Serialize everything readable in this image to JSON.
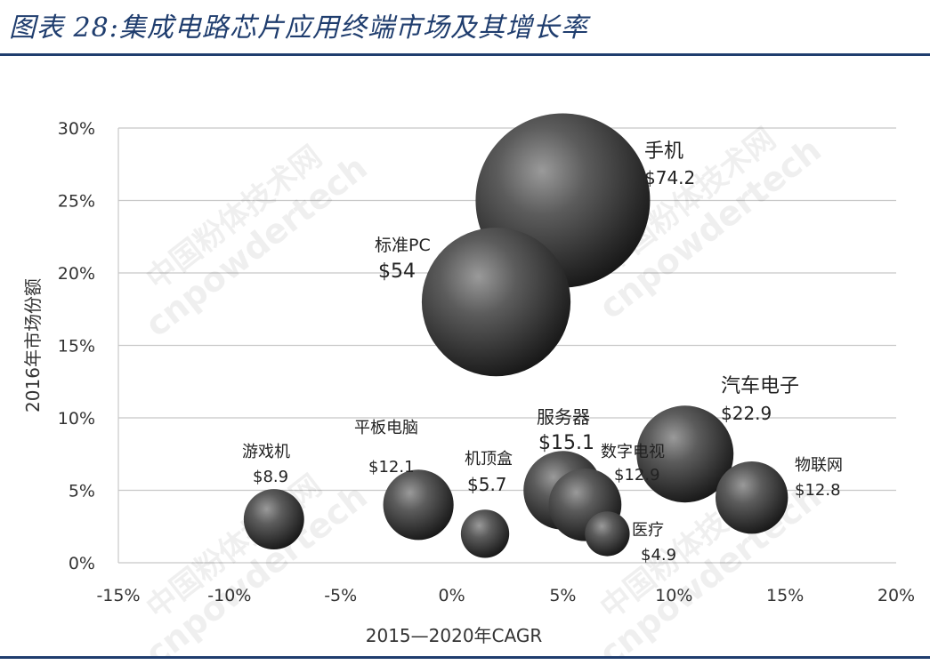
{
  "figure_title": "图表 28:集成电路芯片应用终端市场及其增长率",
  "watermark": {
    "line1": "中国粉体技术网",
    "line2": "cnpowdertech"
  },
  "chart_data": {
    "type": "bubble",
    "xlabel": "2015—2020年CAGR",
    "ylabel": "2016年市场份额",
    "xlim": [
      -15,
      20
    ],
    "ylim": [
      0,
      30
    ],
    "xticks": [
      -15,
      -10,
      -5,
      0,
      5,
      10,
      15,
      20
    ],
    "yticks": [
      0,
      5,
      10,
      15,
      20,
      25,
      30
    ],
    "xtick_labels": [
      "-15%",
      "-10%",
      "-5%",
      "0%",
      "5%",
      "10%",
      "15%",
      "20%"
    ],
    "ytick_labels": [
      "0%",
      "5%",
      "10%",
      "15%",
      "20%",
      "25%",
      "30%"
    ],
    "grid": "horizontal",
    "bubbles": [
      {
        "name": "手机",
        "value_label": "$74.2",
        "x": 5,
        "y": 25,
        "size": 74.2
      },
      {
        "name": "标准PC",
        "value_label": "$54",
        "x": 2,
        "y": 18,
        "size": 54
      },
      {
        "name": "汽车电子",
        "value_label": "$22.9",
        "x": 10.5,
        "y": 7.5,
        "size": 22.9
      },
      {
        "name": "服务器",
        "value_label": "$15.1",
        "x": 5,
        "y": 5,
        "size": 15.1
      },
      {
        "name": "数字电视",
        "value_label": "$12.9",
        "x": 6,
        "y": 4,
        "size": 12.9
      },
      {
        "name": "物联网",
        "value_label": "$12.8",
        "x": 13.5,
        "y": 4.5,
        "size": 12.8
      },
      {
        "name": "平板电脑",
        "value_label": "$12.1",
        "x": -1.5,
        "y": 4,
        "size": 12.1
      },
      {
        "name": "游戏机",
        "value_label": "$8.9",
        "x": -8,
        "y": 3,
        "size": 8.9
      },
      {
        "name": "机顶盒",
        "value_label": "$5.7",
        "x": 1.5,
        "y": 2,
        "size": 5.7
      },
      {
        "name": "医疗",
        "value_label": "$4.9",
        "x": 7,
        "y": 2,
        "size": 4.9
      }
    ]
  }
}
